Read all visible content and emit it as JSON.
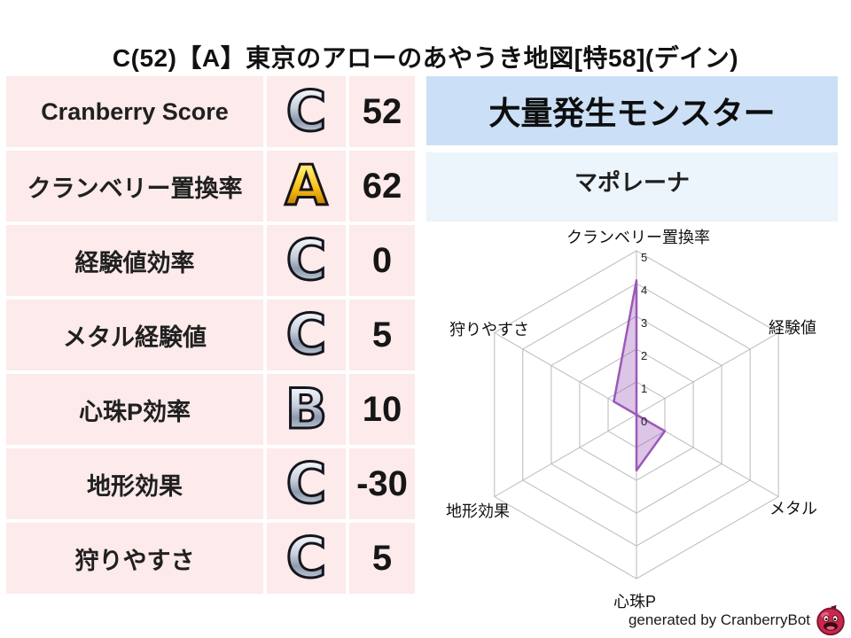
{
  "title": "C(52)【A】東京のアローのあやうき地図[特58](デイン)",
  "stats": {
    "rows": [
      {
        "label": "Cranberry Score",
        "grade": "C",
        "value": "52"
      },
      {
        "label": "クランベリー置換率",
        "grade": "A",
        "value": "62"
      },
      {
        "label": "経験値効率",
        "grade": "C",
        "value": "0"
      },
      {
        "label": "メタル経験値",
        "grade": "C",
        "value": "5"
      },
      {
        "label": "心珠P効率",
        "grade": "B",
        "value": "10"
      },
      {
        "label": "地形効果",
        "grade": "C",
        "value": "-30"
      },
      {
        "label": "狩りやすさ",
        "grade": "C",
        "value": "5"
      }
    ]
  },
  "monster_panel": {
    "header": "大量発生モンスター",
    "name": "マポレーナ"
  },
  "chart_data": {
    "type": "radar",
    "categories": [
      "クランベリー置換率",
      "経験値",
      "メタル",
      "心珠P",
      "地形効果",
      "狩りやすさ"
    ],
    "values": [
      4.1,
      0,
      1.0,
      1.7,
      0,
      0.8
    ],
    "ticks": [
      0,
      1,
      2,
      3,
      4,
      5
    ],
    "rlim": [
      0,
      5
    ],
    "grid": true,
    "legend": "none",
    "series_color": "#9c59b8",
    "fill_opacity": 0.35,
    "grid_color": "#b9b9b9"
  },
  "footer": {
    "credit": "generated by CranberryBot",
    "logo_icon": "cranberry-bot-icon"
  },
  "colors": {
    "row_highlight_bg": "#f8c7ca",
    "row_bg": "#fdeaea",
    "monster_header_bg": "#cbe0f7",
    "monster_name_bg": "#ecf4fc"
  }
}
